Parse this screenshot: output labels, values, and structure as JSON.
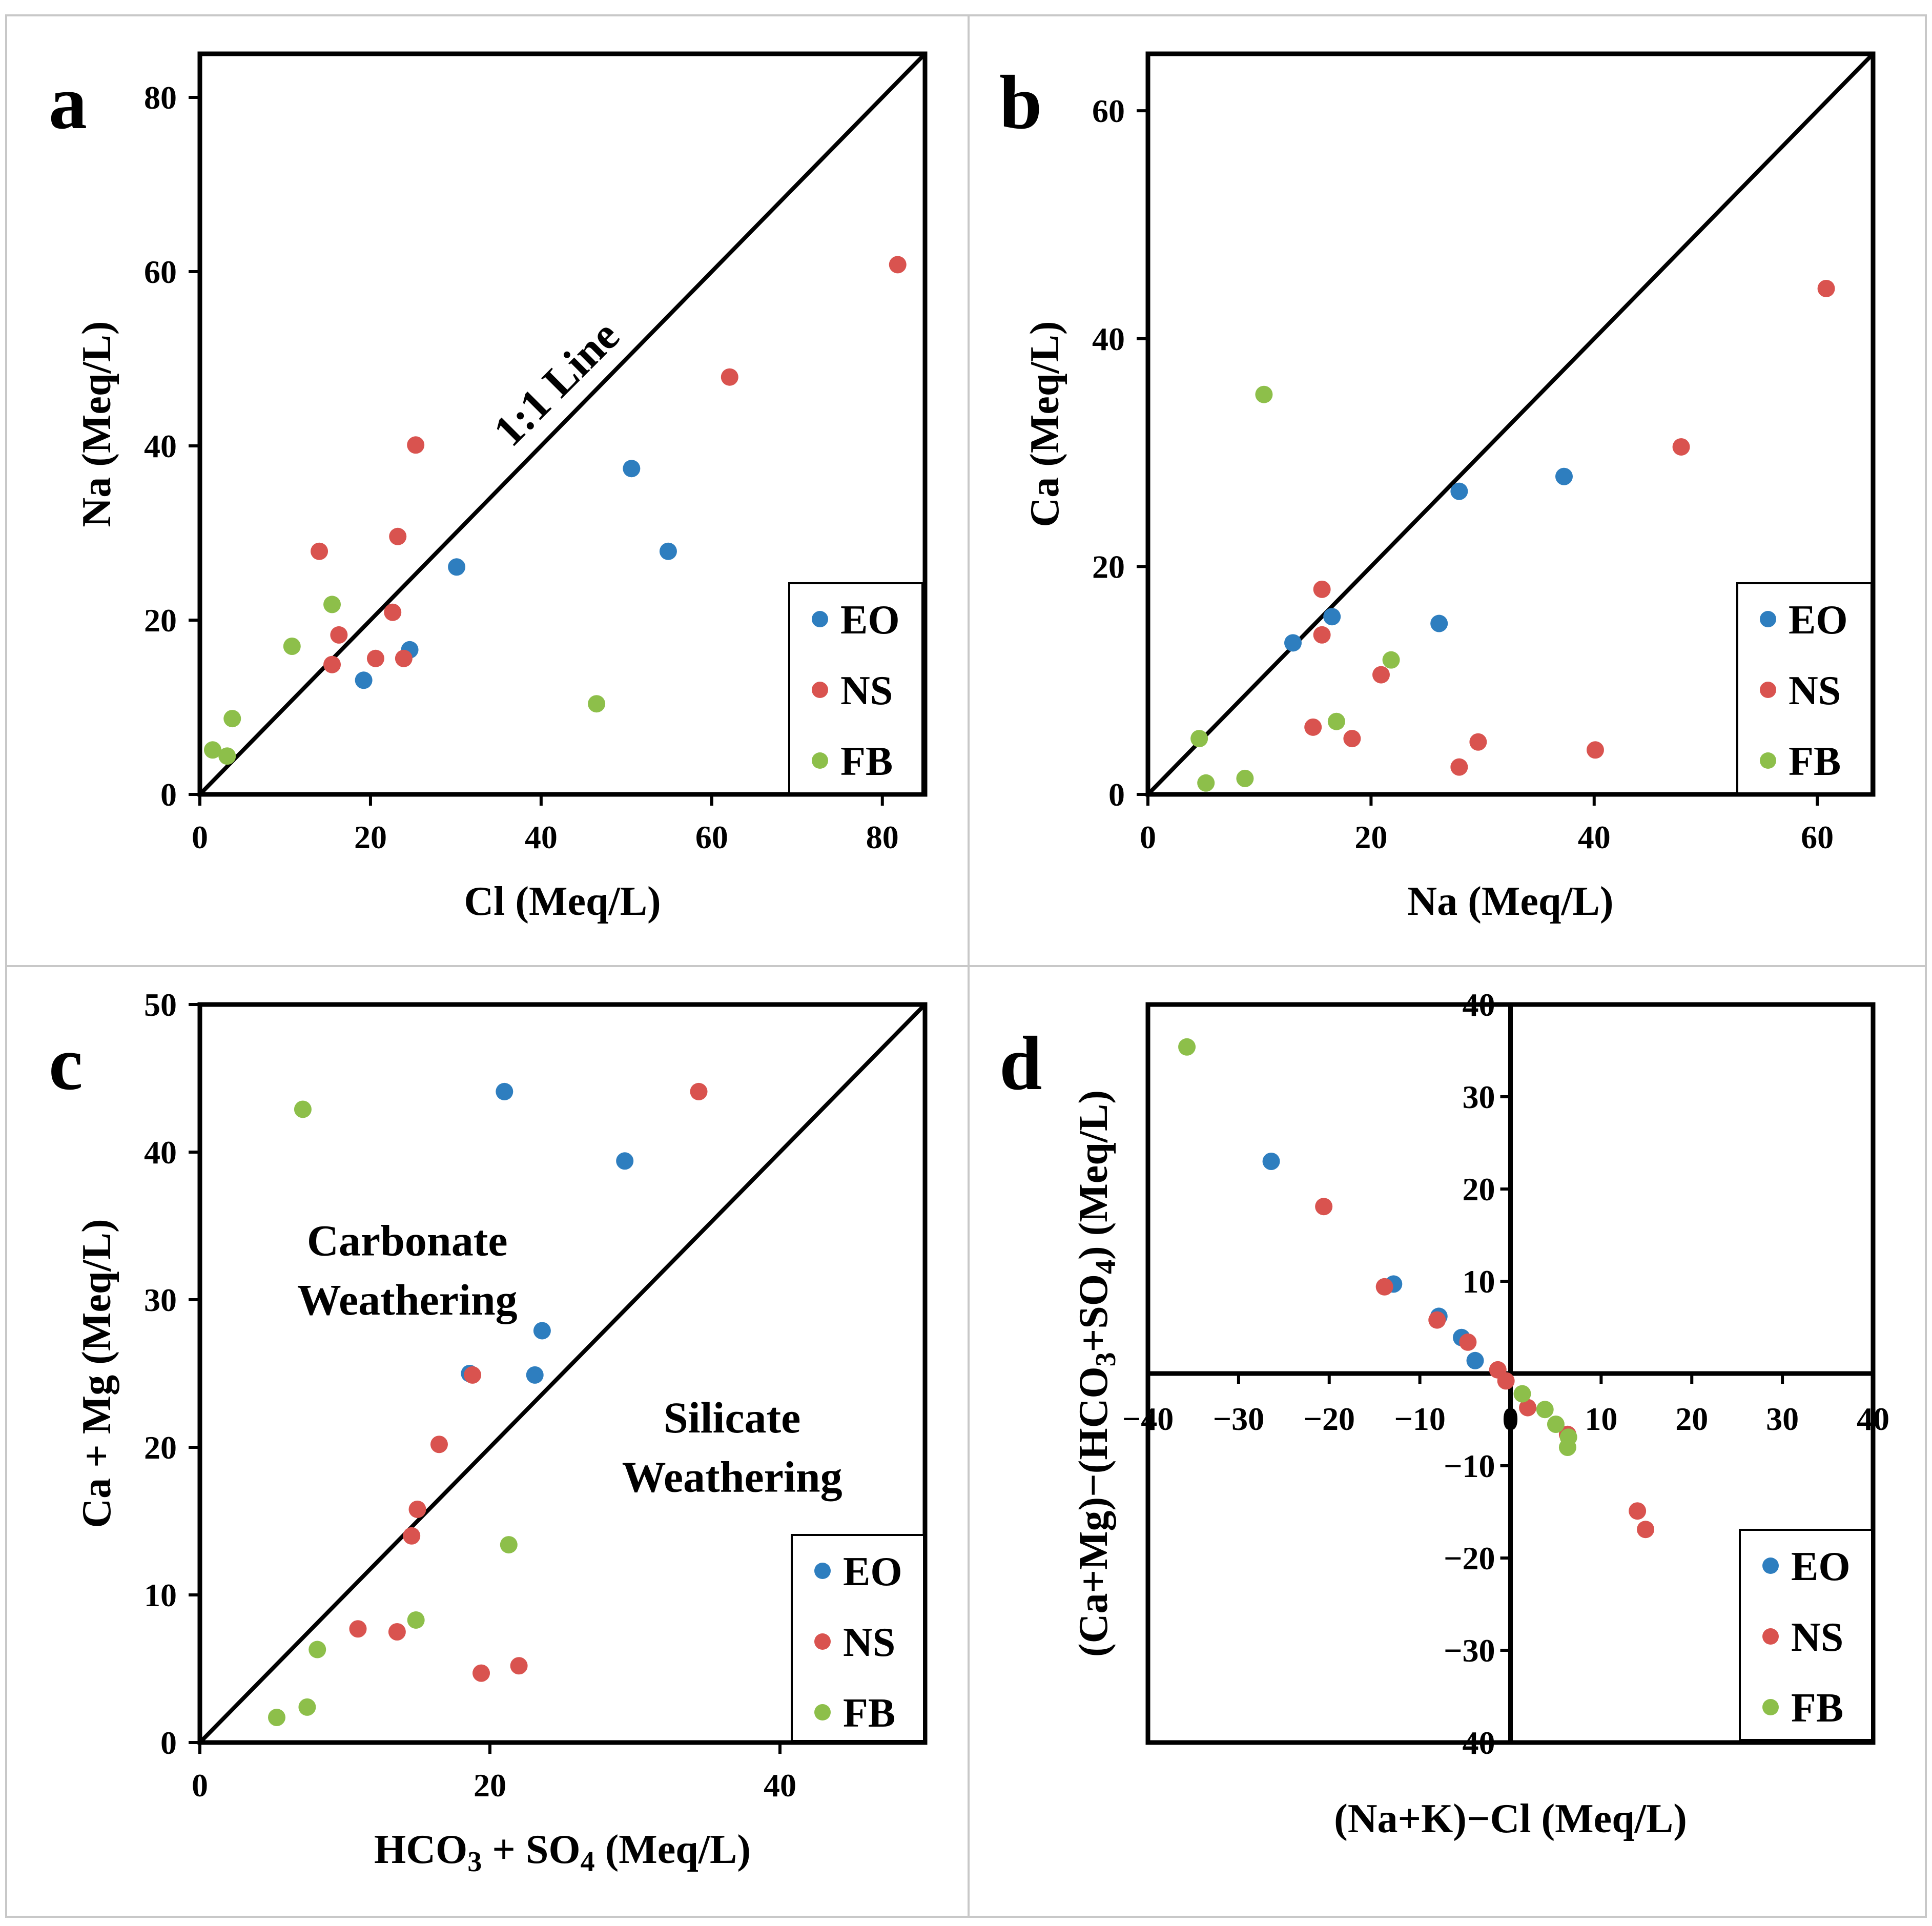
{
  "colors": {
    "EO": "#2e7ebf",
    "NS": "#d9534f",
    "FB": "#8dbf4a"
  },
  "chart_data": [
    {
      "type": "scatter",
      "panel_letter": "a",
      "xlabel": "Cl (Meq/L)",
      "ylabel": "Na (Meq/L)",
      "xlim": [
        0,
        85
      ],
      "ylim": [
        0,
        85
      ],
      "xticks": [
        0,
        20,
        40,
        60,
        80
      ],
      "yticks": [
        0,
        20,
        40,
        60,
        80
      ],
      "x_tick_labels": [
        "0",
        "20",
        "40",
        "60",
        "80"
      ],
      "y_tick_labels": [
        "0",
        "20",
        "40",
        "60",
        "80"
      ],
      "reference_line": {
        "from": [
          0,
          0
        ],
        "to": [
          85,
          85
        ]
      },
      "annotations": [
        {
          "text": "1:1 Line",
          "x": 43,
          "y": 46,
          "rotate": true
        }
      ],
      "legend": [
        "EO",
        "NS",
        "FB"
      ],
      "series": [
        {
          "name": "EO",
          "points": [
            [
              19.2,
              13.1
            ],
            [
              24.6,
              16.6
            ],
            [
              30.1,
              26.1
            ],
            [
              50.6,
              37.4
            ],
            [
              54.9,
              27.9
            ]
          ]
        },
        {
          "name": "NS",
          "points": [
            [
              14,
              27.9
            ],
            [
              15.5,
              14.9
            ],
            [
              16.3,
              18.3
            ],
            [
              20.6,
              15.6
            ],
            [
              22.6,
              20.9
            ],
            [
              23.2,
              29.6
            ],
            [
              23.9,
              15.6
            ],
            [
              25.3,
              40.1
            ],
            [
              62.1,
              47.9
            ],
            [
              81.8,
              60.8
            ]
          ]
        },
        {
          "name": "FB",
          "points": [
            [
              1.5,
              5.1
            ],
            [
              3.2,
              4.4
            ],
            [
              3.8,
              8.7
            ],
            [
              10.8,
              17
            ],
            [
              15.5,
              21.8
            ],
            [
              46.5,
              10.4
            ]
          ]
        }
      ]
    },
    {
      "type": "scatter",
      "panel_letter": "b",
      "xlabel": "Na (Meq/L)",
      "ylabel": "Ca (Meq/L)",
      "xlim": [
        0,
        65
      ],
      "ylim": [
        0,
        65
      ],
      "xticks": [
        0,
        20,
        40,
        60
      ],
      "yticks": [
        0,
        20,
        40,
        60
      ],
      "x_tick_labels": [
        "0",
        "20",
        "40",
        "60"
      ],
      "y_tick_labels": [
        "0",
        "20",
        "40",
        "60"
      ],
      "reference_line": {
        "from": [
          0,
          0
        ],
        "to": [
          65,
          65
        ]
      },
      "annotations": [],
      "legend": [
        "EO",
        "NS",
        "FB"
      ],
      "series": [
        {
          "name": "EO",
          "points": [
            [
              13,
              13.3
            ],
            [
              16.5,
              15.6
            ],
            [
              26.1,
              15
            ],
            [
              27.9,
              26.6
            ],
            [
              37.3,
              27.9
            ]
          ]
        },
        {
          "name": "NS",
          "points": [
            [
              14.8,
              5.9
            ],
            [
              15.6,
              14
            ],
            [
              15.6,
              18
            ],
            [
              18.3,
              4.9
            ],
            [
              20.9,
              10.5
            ],
            [
              27.9,
              2.4
            ],
            [
              29.6,
              4.6
            ],
            [
              40.1,
              3.9
            ],
            [
              47.8,
              30.5
            ],
            [
              60.8,
              44.4
            ]
          ]
        },
        {
          "name": "FB",
          "points": [
            [
              4.6,
              4.9
            ],
            [
              5.2,
              1
            ],
            [
              8.7,
              1.4
            ],
            [
              10.4,
              35.1
            ],
            [
              16.9,
              6.4
            ],
            [
              21.8,
              11.8
            ]
          ]
        }
      ]
    },
    {
      "type": "scatter",
      "panel_letter": "c",
      "xlabel_parts": [
        "HCO",
        "3",
        " + SO",
        "4",
        " (Meq/L)"
      ],
      "ylabel": "Ca + Mg (Meq/L)",
      "xlim": [
        0,
        50
      ],
      "ylim": [
        0,
        50
      ],
      "xticks": [
        0,
        20,
        40
      ],
      "yticks": [
        0,
        10,
        20,
        30,
        40,
        50
      ],
      "x_tick_labels": [
        "0",
        "20",
        "40"
      ],
      "y_tick_labels": [
        "0",
        "10",
        "20",
        "30",
        "40",
        "50"
      ],
      "reference_line": {
        "from": [
          0,
          0
        ],
        "to": [
          50,
          50
        ]
      },
      "annotations": [
        {
          "text": "Carbonate",
          "x": 14.3,
          "y": 33
        },
        {
          "text": "Weathering",
          "x": 14.3,
          "y": 29
        },
        {
          "text": "Silicate",
          "x": 36.7,
          "y": 21
        },
        {
          "text": "Weathering",
          "x": 36.7,
          "y": 17
        }
      ],
      "legend": [
        "EO",
        "NS",
        "FB"
      ],
      "series": [
        {
          "name": "EO",
          "points": [
            [
              18.6,
              25
            ],
            [
              21,
              44.1
            ],
            [
              23.1,
              24.9
            ],
            [
              23.6,
              27.9
            ],
            [
              29.3,
              39.4
            ]
          ]
        },
        {
          "name": "NS",
          "points": [
            [
              10.9,
              7.7
            ],
            [
              13.6,
              7.5
            ],
            [
              14.6,
              14
            ],
            [
              15,
              15.8
            ],
            [
              16.5,
              20.2
            ],
            [
              18.8,
              24.9
            ],
            [
              19.4,
              4.7
            ],
            [
              22,
              5.2
            ],
            [
              34.4,
              44.1
            ]
          ]
        },
        {
          "name": "FB",
          "points": [
            [
              5.3,
              1.7
            ],
            [
              7.1,
              42.9
            ],
            [
              7.4,
              2.4
            ],
            [
              8.1,
              6.3
            ],
            [
              14.9,
              8.3
            ],
            [
              21.3,
              13.4
            ]
          ]
        }
      ]
    },
    {
      "type": "scatter",
      "panel_letter": "d",
      "xlabel": "(Na+K)−Cl (Meq/L)",
      "ylabel_parts": [
        "(Ca+Mg)−(HCO",
        "3",
        "+SO",
        "4",
        ") (Meq/L)"
      ],
      "xlim": [
        -40,
        40
      ],
      "ylim": [
        -40,
        40
      ],
      "xticks": [
        -40,
        -30,
        -20,
        -10,
        0,
        10,
        20,
        30,
        40
      ],
      "yticks": [
        -40,
        -30,
        -20,
        -10,
        0,
        10,
        20,
        30,
        40
      ],
      "x_tick_labels": [
        "−40",
        "−30",
        "−20",
        "−10",
        "0",
        "10",
        "20",
        "30",
        "40"
      ],
      "y_tick_labels": [
        "−40",
        "−30",
        "−20",
        "−10",
        "0",
        "10",
        "20",
        "30",
        "40"
      ],
      "axes_through_origin": true,
      "annotations": [],
      "legend": [
        "EO",
        "NS",
        "FB"
      ],
      "series": [
        {
          "name": "EO",
          "points": [
            [
              -26.4,
              23
            ],
            [
              -12.9,
              9.7
            ],
            [
              -7.9,
              6.2
            ],
            [
              -5.4,
              3.9
            ],
            [
              -3.9,
              1.4
            ]
          ]
        },
        {
          "name": "NS",
          "points": [
            [
              -20.6,
              18.1
            ],
            [
              -13.9,
              9.4
            ],
            [
              -8.1,
              5.8
            ],
            [
              -4.7,
              3.4
            ],
            [
              -1.4,
              0.4
            ],
            [
              -0.5,
              -0.8
            ],
            [
              1.9,
              -3.7
            ],
            [
              6.3,
              -6.6
            ],
            [
              14,
              -14.9
            ],
            [
              14.9,
              -16.9
            ]
          ]
        },
        {
          "name": "FB",
          "points": [
            [
              -35.7,
              35.4
            ],
            [
              1.3,
              -2.2
            ],
            [
              3.8,
              -3.9
            ],
            [
              5,
              -5.5
            ],
            [
              6.4,
              -6.9
            ],
            [
              6.3,
              -8
            ]
          ]
        }
      ]
    }
  ]
}
